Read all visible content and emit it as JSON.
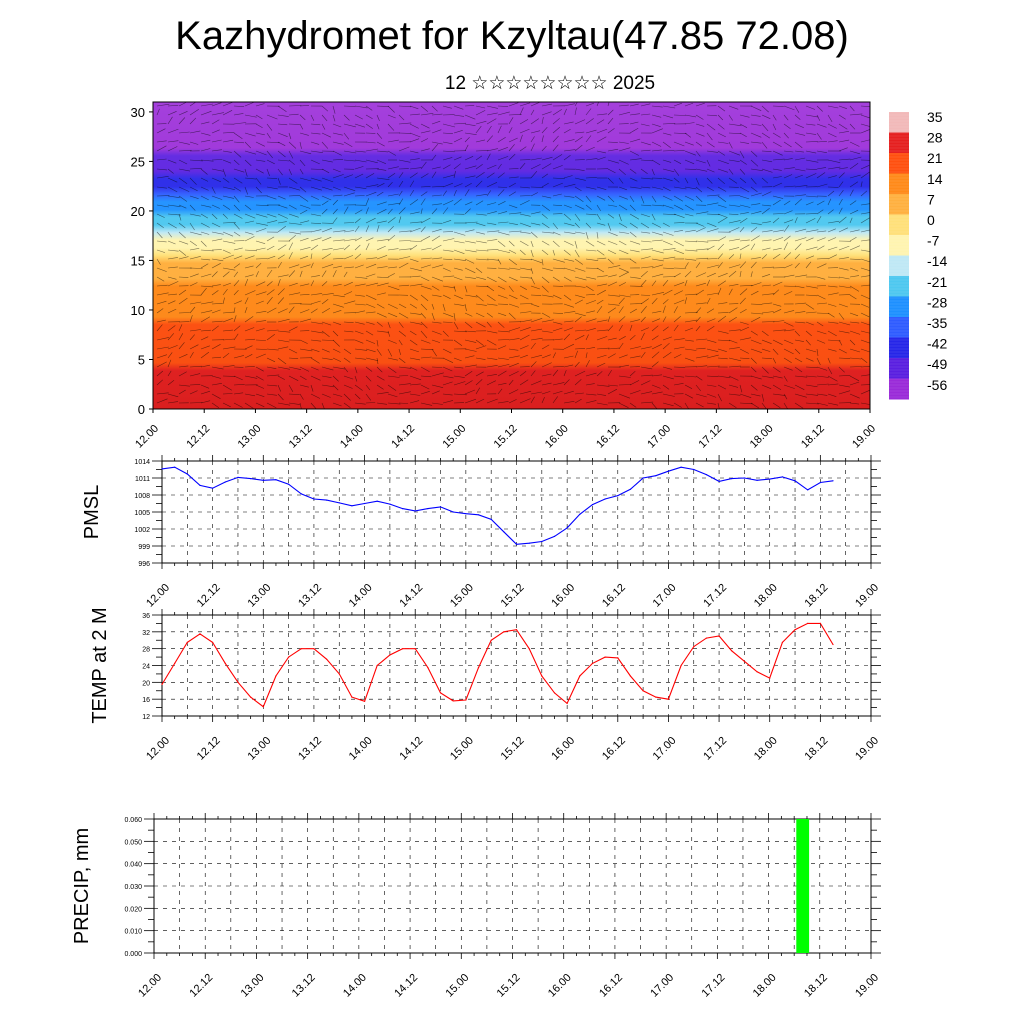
{
  "title": "Kazhydromet for Kzyltau(47.85 72.08)",
  "subtitle": "12 ☆☆☆☆☆☆☆☆ 2025",
  "chart_data": [
    {
      "type": "heatmap",
      "name": "upper-air-temperature",
      "x_tick_labels": [
        "12.00",
        "12.12",
        "13.00",
        "13.12",
        "14.00",
        "14.12",
        "15.00",
        "15.12",
        "16.00",
        "16.12",
        "17.00",
        "17.12",
        "18.00",
        "18.12",
        "19.00"
      ],
      "y_ticks": [
        0,
        5,
        10,
        15,
        20,
        25,
        30
      ],
      "ylim": [
        0,
        31
      ],
      "colorbar_labels": [
        "35",
        "28",
        "21",
        "14",
        "7",
        "0",
        "-7",
        "-14",
        "-21",
        "-28",
        "-35",
        "-42",
        "-49",
        "-56"
      ],
      "colorbar_colors": [
        "#f2b9b9",
        "#e52020",
        "#ff5010",
        "#ff8a1a",
        "#ffb040",
        "#ffe07a",
        "#fff4b0",
        "#bfe8f5",
        "#4ec8f0",
        "#1e90ff",
        "#2f5cff",
        "#2626e8",
        "#5a1fe0",
        "#9a2bd8"
      ],
      "temperature_profile": {
        "height": [
          0,
          3,
          6,
          9,
          12,
          15,
          17,
          19,
          21,
          23,
          25,
          27,
          31
        ],
        "temp": [
          31,
          27,
          22,
          17,
          12,
          4,
          -9,
          -20,
          -30,
          -42,
          -50,
          -57,
          -60
        ]
      }
    },
    {
      "type": "line",
      "name": "pmsl",
      "ylabel": "PMSL",
      "ylim": [
        996,
        1014
      ],
      "y_ticks": [
        996,
        999,
        1002,
        1005,
        1008,
        1011,
        1014
      ],
      "x_tick_labels": [
        "12.00",
        "12.12",
        "13.00",
        "13.12",
        "14.00",
        "14.12",
        "15.00",
        "15.12",
        "16.00",
        "16.12",
        "17.00",
        "17.12",
        "18.00",
        "18.12",
        "19.00"
      ],
      "series": [
        {
          "color": "#0000ff",
          "x": [
            0,
            3,
            6,
            9,
            12,
            15,
            18,
            21,
            24,
            27,
            30,
            33,
            36,
            39,
            42,
            45,
            48,
            51,
            54,
            57,
            60,
            63,
            66,
            69,
            72,
            75,
            78,
            81,
            84,
            87,
            90,
            93,
            96,
            99,
            102,
            105,
            108,
            111,
            114,
            117,
            120,
            123,
            126,
            129,
            132,
            135,
            138,
            141,
            144,
            147,
            150,
            153,
            156,
            159
          ],
          "values": [
            1012.6,
            1012.9,
            1011.7,
            1009.7,
            1009.2,
            1010.3,
            1011.1,
            1010.9,
            1010.6,
            1010.7,
            1009.9,
            1008.2,
            1007.3,
            1007.1,
            1006.6,
            1006.1,
            1006.5,
            1006.9,
            1006.4,
            1005.6,
            1005.2,
            1005.6,
            1005.9,
            1005.0,
            1004.7,
            1004.5,
            1003.7,
            1001.5,
            999.3,
            999.5,
            999.8,
            1000.7,
            1002.2,
            1004.6,
            1006.3,
            1007.3,
            1007.9,
            1009.0,
            1011.0,
            1011.4,
            1012.2,
            1012.9,
            1012.5,
            1011.6,
            1010.4,
            1010.9,
            1011.0,
            1010.6,
            1010.8,
            1011.2,
            1010.5,
            1008.9,
            1010.2,
            1010.5
          ]
        }
      ]
    },
    {
      "type": "line",
      "name": "temp-2m",
      "ylabel": "TEMP at 2 M",
      "ylim": [
        12,
        36
      ],
      "y_ticks": [
        12,
        16,
        20,
        24,
        28,
        32,
        36
      ],
      "x_tick_labels": [
        "12.00",
        "12.12",
        "13.00",
        "13.12",
        "14.00",
        "14.12",
        "15.00",
        "15.12",
        "16.00",
        "16.12",
        "17.00",
        "17.12",
        "18.00",
        "18.12",
        "19.00"
      ],
      "series": [
        {
          "color": "#ff0000",
          "x": [
            0,
            3,
            6,
            9,
            12,
            15,
            18,
            21,
            24,
            27,
            30,
            33,
            36,
            39,
            42,
            45,
            48,
            51,
            54,
            57,
            60,
            63,
            66,
            69,
            72,
            75,
            78,
            81,
            84,
            87,
            90,
            93,
            96,
            99,
            102,
            105,
            108,
            111,
            114,
            117,
            120,
            123,
            126,
            129,
            132,
            135,
            138,
            141,
            144,
            147,
            150,
            153,
            156,
            159
          ],
          "values": [
            19.5,
            24.5,
            29.5,
            31.5,
            29.5,
            24.5,
            20.0,
            16.5,
            14.2,
            21.5,
            26.0,
            28.0,
            28.0,
            25.5,
            22.0,
            16.5,
            15.5,
            24.0,
            26.5,
            28.0,
            28.0,
            23.5,
            17.5,
            15.6,
            15.8,
            23.5,
            30.0,
            32.0,
            32.5,
            28.0,
            21.5,
            17.5,
            15.0,
            21.5,
            24.5,
            26.0,
            25.8,
            21.5,
            18.0,
            16.5,
            16.0,
            24.0,
            28.5,
            30.5,
            31.0,
            27.5,
            25.0,
            22.5,
            21.0,
            29.5,
            32.5,
            34.0,
            34.0,
            29.0
          ]
        }
      ]
    },
    {
      "type": "bar",
      "name": "precip",
      "ylabel": "PRECIP, mm",
      "ylim": [
        0,
        0.06
      ],
      "y_ticks": [
        "0.000",
        "0.010",
        "0.020",
        "0.030",
        "0.040",
        "0.050",
        "0.060"
      ],
      "x_tick_labels": [
        "12.00",
        "12.12",
        "13.00",
        "13.12",
        "14.00",
        "14.12",
        "15.00",
        "15.12",
        "16.00",
        "16.12",
        "17.00",
        "17.12",
        "18.00",
        "18.12",
        "19.00"
      ],
      "bars": [
        {
          "x_start": 150.5,
          "x_end": 153.5,
          "value": 0.06,
          "color": "#00ff00"
        }
      ]
    }
  ]
}
